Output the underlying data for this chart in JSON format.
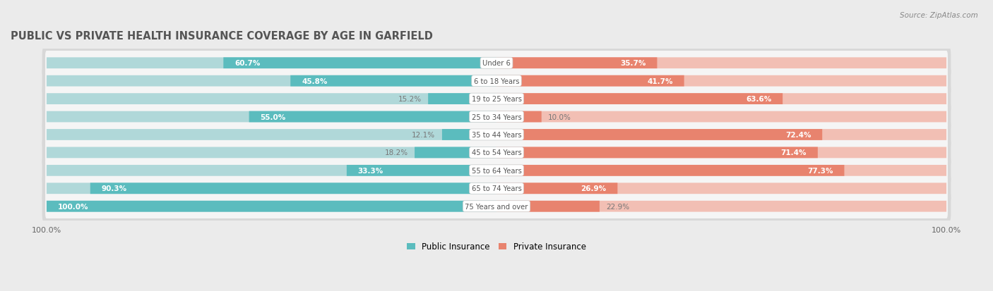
{
  "title": "PUBLIC VS PRIVATE HEALTH INSURANCE COVERAGE BY AGE IN GARFIELD",
  "source": "Source: ZipAtlas.com",
  "categories": [
    "Under 6",
    "6 to 18 Years",
    "19 to 25 Years",
    "25 to 34 Years",
    "35 to 44 Years",
    "45 to 54 Years",
    "55 to 64 Years",
    "65 to 74 Years",
    "75 Years and over"
  ],
  "public_values": [
    60.7,
    45.8,
    15.2,
    55.0,
    12.1,
    18.2,
    33.3,
    90.3,
    100.0
  ],
  "private_values": [
    35.7,
    41.7,
    63.6,
    10.0,
    72.4,
    71.4,
    77.3,
    26.9,
    22.9
  ],
  "public_color": "#5bbcbe",
  "private_color": "#e8836e",
  "public_color_light": "#b0d8d9",
  "private_color_light": "#f2bfb4",
  "bg_color": "#ebebeb",
  "row_bg_color": "#e2e2e2",
  "row_inner_color": "#f5f5f5",
  "title_color": "#555555",
  "label_color": "#666666",
  "value_color_inside": "#ffffff",
  "value_color_outside": "#777777",
  "max_value": 100.0,
  "bar_height": 0.62,
  "legend_label_public": "Public Insurance",
  "legend_label_private": "Private Insurance"
}
